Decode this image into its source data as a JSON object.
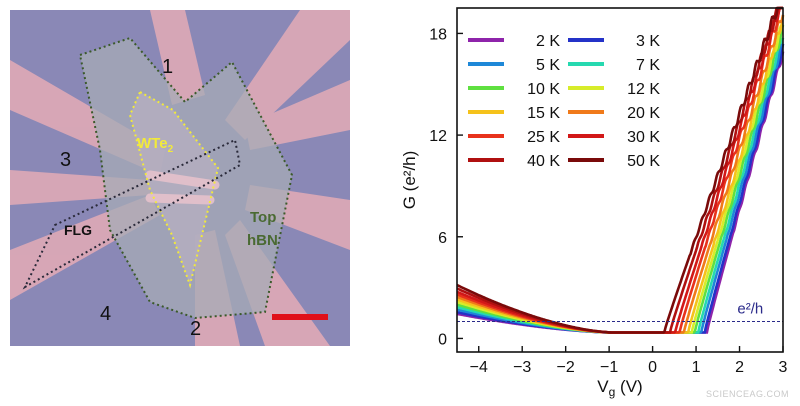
{
  "micrograph": {
    "labels": {
      "contact_1": "1",
      "contact_2": "2",
      "contact_3": "3",
      "contact_4": "4",
      "wte2": "WTe",
      "wte2_sub": "2",
      "flg": "FLG",
      "top_hbn_line1": "Top",
      "top_hbn_line2": "hBN"
    },
    "colors": {
      "background": "#8a88b6",
      "contacts": "#d9a6b4",
      "hbn": "#a5abb5",
      "wte2_outline": "#f2ea3a",
      "flg_outline": "#2a2a3a",
      "hbn_outline": "#3b5a2a",
      "scale_bar": "#e0101a"
    }
  },
  "chart_data": {
    "type": "line",
    "xlabel": "V",
    "xlabel_sub": "g",
    "xlabel_unit": " (V)",
    "ylabel": "G (e²/h)",
    "xlim": [
      -4.5,
      3.0
    ],
    "ylim": [
      -0.8,
      19.5
    ],
    "xticks": [
      -4,
      -3,
      -2,
      -1,
      0,
      1,
      2,
      3
    ],
    "yticks": [
      0,
      6,
      12,
      18
    ],
    "annotation": "e²/h",
    "reference_line_y": 1,
    "legend_position": "top-left",
    "series": [
      {
        "name": "2 K",
        "color": "#8e24aa",
        "temp": 2,
        "turn_on": 1.25,
        "slope": 9.0,
        "left": 1.1
      },
      {
        "name": "3 K",
        "color": "#2432c8",
        "temp": 3,
        "turn_on": 1.2,
        "slope": 8.9,
        "left": 1.2
      },
      {
        "name": "5 K",
        "color": "#1e88d8",
        "temp": 5,
        "turn_on": 1.12,
        "slope": 8.7,
        "left": 1.35
      },
      {
        "name": "7 K",
        "color": "#26d9b0",
        "temp": 7,
        "turn_on": 1.05,
        "slope": 8.6,
        "left": 1.5
      },
      {
        "name": "10 K",
        "color": "#5fe040",
        "temp": 10,
        "turn_on": 0.97,
        "slope": 8.4,
        "left": 1.65
      },
      {
        "name": "12 K",
        "color": "#d7ec2a",
        "temp": 12,
        "turn_on": 0.9,
        "slope": 8.3,
        "left": 1.8
      },
      {
        "name": "15 K",
        "color": "#f5c21b",
        "temp": 15,
        "turn_on": 0.82,
        "slope": 8.1,
        "left": 1.95
      },
      {
        "name": "20 K",
        "color": "#f07a1a",
        "temp": 20,
        "turn_on": 0.72,
        "slope": 7.9,
        "left": 2.1
      },
      {
        "name": "25 K",
        "color": "#e8321c",
        "temp": 25,
        "turn_on": 0.62,
        "slope": 7.8,
        "left": 2.25
      },
      {
        "name": "30 K",
        "color": "#d21818",
        "temp": 30,
        "turn_on": 0.52,
        "slope": 7.6,
        "left": 2.4
      },
      {
        "name": "40 K",
        "color": "#b01010",
        "temp": 40,
        "turn_on": 0.4,
        "slope": 7.3,
        "left": 2.6
      },
      {
        "name": "50 K",
        "color": "#7a0a0a",
        "temp": 50,
        "turn_on": 0.27,
        "slope": 7.0,
        "left": 2.8
      }
    ]
  },
  "watermark": "SCIENCEAG.COM"
}
